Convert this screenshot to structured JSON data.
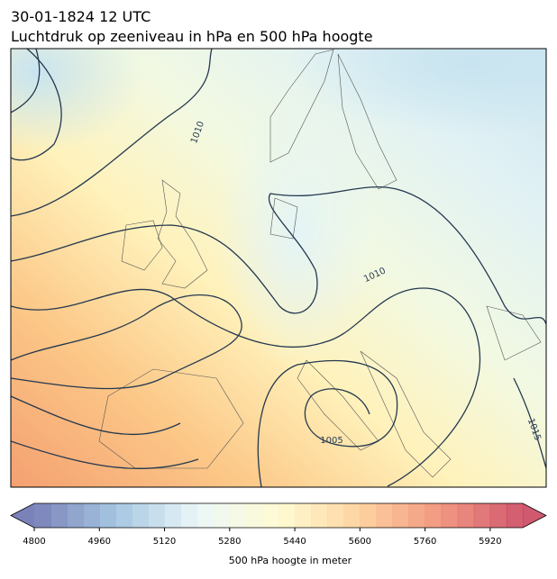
{
  "header": {
    "title": "30-01-1824 12 UTC",
    "subtitle": "Luchtdruk op zeeniveau in hPa en 500 hPa hoogte"
  },
  "map": {
    "contour_labels": [
      "1010",
      "1010",
      "1005",
      "1015"
    ]
  },
  "colorbar": {
    "range": [
      4800,
      6000
    ],
    "levels": 30,
    "ticks": [
      4800,
      4960,
      5120,
      5280,
      5440,
      5600,
      5760,
      5920
    ],
    "colors": [
      "#5a63a8",
      "#8fb8da",
      "#e6f4f6",
      "#fffac8",
      "#fdc98a",
      "#ef7d62",
      "#c42f4c"
    ],
    "label": "500 hPa hoogte in meter"
  }
}
